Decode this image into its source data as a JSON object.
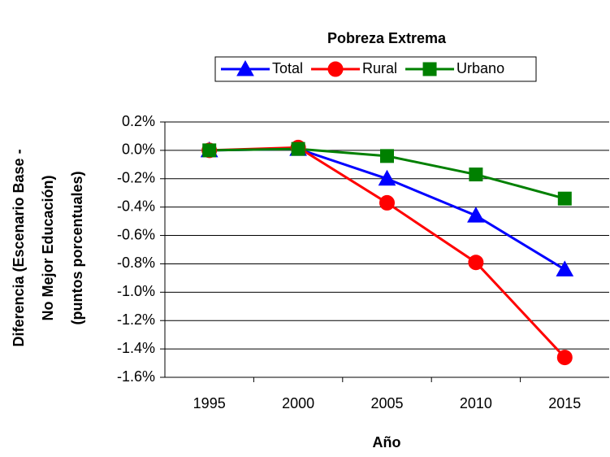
{
  "chart_data": {
    "type": "line",
    "title": "Pobreza Extrema",
    "x_label": "Año",
    "y_label": [
      "Diferencia (Escenario Base -",
      "No Mejor Educación)",
      "(puntos porcentuales)"
    ],
    "categories": [
      "1995",
      "2000",
      "2005",
      "2010",
      "2015"
    ],
    "series": [
      {
        "name": "Total",
        "color": "#0000ff",
        "marker": "triangle",
        "values": [
          0,
          0.01,
          -0.2,
          -0.46,
          -0.84
        ]
      },
      {
        "name": "Rural",
        "color": "#ff0000",
        "marker": "circle",
        "values": [
          0,
          0.02,
          -0.37,
          -0.79,
          -1.46
        ]
      },
      {
        "name": "Urbano",
        "color": "#008000",
        "marker": "square",
        "values": [
          0,
          0.01,
          -0.04,
          -0.17,
          -0.34
        ]
      }
    ],
    "ylim": [
      -1.6,
      0.2
    ],
    "yticks": [
      {
        "value": 0.2,
        "label": "0.2%"
      },
      {
        "value": 0,
        "label": "0.0%"
      },
      {
        "value": -0.2,
        "label": "-0.2%"
      },
      {
        "value": -0.4,
        "label": "-0.4%"
      },
      {
        "value": -0.6,
        "label": "-0.6%"
      },
      {
        "value": -0.8,
        "label": "-0.8%"
      },
      {
        "value": -1.0,
        "label": "-1.0%"
      },
      {
        "value": -1.2,
        "label": "-1.2%"
      },
      {
        "value": -1.4,
        "label": "-1.4%"
      },
      {
        "value": -1.6,
        "label": "-1.6%"
      }
    ],
    "grid": true,
    "legend": "top"
  }
}
